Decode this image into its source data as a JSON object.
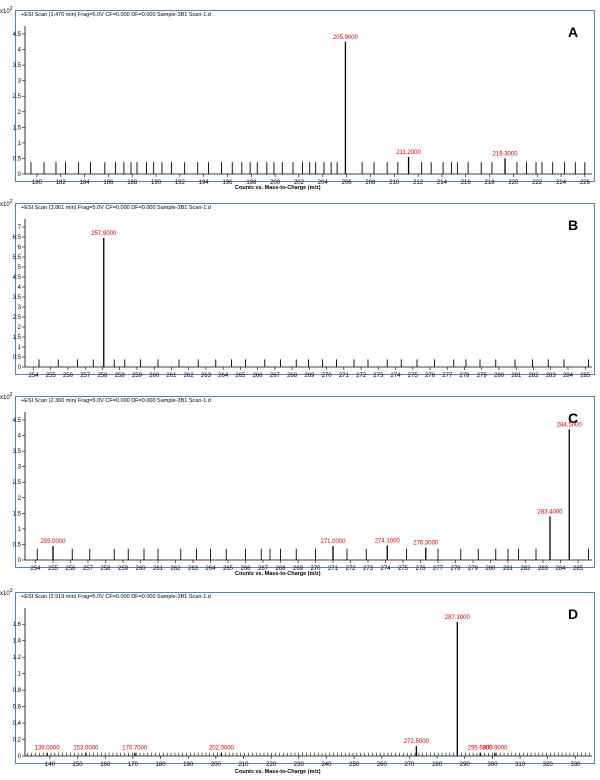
{
  "colors": {
    "frame": "#5a7fbf",
    "peak_label": "#cc0000",
    "bars": "#000000"
  },
  "chart_data": [
    {
      "type": "bar",
      "panel": "A",
      "scan_title": "+ESI Scan (1.470 min) Frag=5.0V CF=0.000 DF=0.000 Sample-3B1 Scan-1.d",
      "scale_label": "x10",
      "scale_exp": "2",
      "xlabel": "Counts vs. Mass-to-Charge (m/z)",
      "xlim": [
        179,
        226.6
      ],
      "ylim": [
        0,
        4.5
      ],
      "xticks": [
        "180",
        "182",
        "184",
        "186",
        "188",
        "190",
        "192",
        "194",
        "196",
        "198",
        "200",
        "202",
        "204",
        "206",
        "208",
        "210",
        "212",
        "214",
        "216",
        "218",
        "220",
        "222",
        "224",
        "226"
      ],
      "yticks": [
        "0",
        "0.5",
        "1",
        "1.5",
        "2",
        "2.5",
        "3",
        "3.5",
        "4",
        "4.5"
      ],
      "labeled_peaks": [
        {
          "x": 205.9,
          "y": 4.25,
          "label": "205.9000"
        },
        {
          "x": 211.2,
          "y": 0.55,
          "label": "211.2000"
        },
        {
          "x": 219.3,
          "y": 0.5,
          "label": "219.3000"
        }
      ],
      "noise_x": [
        179.5,
        180.6,
        181.6,
        182.4,
        183.5,
        184.5,
        185.7,
        186.6,
        187.3,
        187.9,
        188.4,
        189.2,
        189.8,
        190.5,
        191.3,
        192.4,
        193.5,
        194.4,
        195.5,
        196.4,
        197.2,
        197.9,
        198.5,
        199.3,
        199.9,
        200.6,
        201.5,
        202.3,
        202.9,
        203.4,
        204.1,
        204.7,
        205.2,
        207.3,
        208.3,
        209.4,
        210.3,
        212.3,
        213.1,
        214.1,
        214.8,
        215.3,
        216.2,
        217.3,
        218.2,
        220.3,
        221.1,
        221.9,
        222.4,
        223.3,
        224.3,
        225.2,
        226.0
      ],
      "noise_y": 0.38
    },
    {
      "type": "bar",
      "panel": "B",
      "scan_title": "+ESI Scan (3.861 min) Frag=5.0V CF=0.000 DF=0.000 Sample-3B1 Scan-1.d",
      "scale_label": "x10",
      "scale_exp": "2",
      "xlabel": "",
      "xlim": [
        253.4,
        285.8
      ],
      "ylim": [
        0,
        7
      ],
      "xticks": [
        "254",
        "255",
        "256",
        "257",
        "258",
        "258",
        "259",
        "260",
        "261",
        "262",
        "263",
        "264",
        "265",
        "266",
        "267",
        "268",
        "269",
        "270",
        "271",
        "272",
        "273",
        "274",
        "275",
        "276",
        "277",
        "278",
        "279",
        "280",
        "281",
        "282",
        "283",
        "284",
        "285"
      ],
      "yticks": [
        "0",
        "0.5",
        "1",
        "1.5",
        "2",
        "2.5",
        "3",
        "3.5",
        "4",
        "4.5",
        "5",
        "5.5",
        "6",
        "6.5",
        "7"
      ],
      "labeled_peaks": [
        {
          "x": 257.9,
          "y": 6.45,
          "label": "257.9000"
        }
      ],
      "noise_x": [
        254.2,
        255.3,
        256.4,
        257.3,
        258.5,
        259.1,
        260.0,
        261.0,
        262.2,
        263.3,
        264.3,
        265.2,
        266.0,
        267.1,
        268.0,
        268.9,
        269.6,
        270.4,
        271.2,
        272.2,
        273.0,
        274.1,
        274.9,
        275.8,
        276.8,
        277.9,
        278.6,
        279.4,
        280.3,
        281.4,
        282.4,
        283.3,
        284.2,
        285.6
      ],
      "noise_y": 0.38
    },
    {
      "type": "bar",
      "panel": "C",
      "scan_title": "+ESI Scan (2.360 min) Frag=5.0V CF=0.000 DF=0.000 Sample-3B1 Scan-1.d",
      "scale_label": "x10",
      "scale_exp": "2",
      "xlabel": "Counts vs. Mass-to-Charge (m/z)",
      "xlim": [
        253.4,
        285.8
      ],
      "ylim": [
        0,
        4.5
      ],
      "xticks": [
        "254",
        "255",
        "256",
        "257",
        "258",
        "259",
        "260",
        "261",
        "262",
        "263",
        "264",
        "265",
        "266",
        "267",
        "268",
        "269",
        "270",
        "271",
        "272",
        "273",
        "274",
        "275",
        "276",
        "277",
        "278",
        "279",
        "280",
        "281",
        "282",
        "283",
        "284",
        "285"
      ],
      "yticks": [
        "0",
        "0.5",
        "1",
        "1.5",
        "2",
        "2.5",
        "3",
        "3.5",
        "4",
        "4.5"
      ],
      "labeled_peaks": [
        {
          "x": 255.0,
          "y": 0.45,
          "label": "255.0000"
        },
        {
          "x": 271.0,
          "y": 0.45,
          "label": "271.0000"
        },
        {
          "x": 274.1,
          "y": 0.47,
          "label": "274.1000"
        },
        {
          "x": 276.3,
          "y": 0.4,
          "label": "276.3000"
        },
        {
          "x": 283.4,
          "y": 1.4,
          "label": "283.4000"
        },
        {
          "x": 284.5,
          "y": 4.2,
          "label": "284.5000"
        }
      ],
      "noise_x": [
        254.1,
        256.1,
        257.1,
        258.5,
        259.3,
        260.2,
        261.0,
        262.3,
        263.2,
        264.0,
        264.9,
        266.0,
        266.9,
        267.4,
        268.0,
        268.9,
        270.0,
        271.8,
        272.9,
        275.2,
        277.0,
        278.3,
        279.3,
        280.3,
        281.0,
        281.6,
        282.6,
        285.6
      ],
      "noise_y": 0.36
    },
    {
      "type": "bar",
      "panel": "D",
      "scan_title": "+ESI Scan (2.919 min) Frag=5.0V CF=0.000 DF=0.000 Sample-3B1 Scan-1.d",
      "scale_label": "x10",
      "scale_exp": "3",
      "xlabel": "Counts vs. Mass-to-Charge (m/z)",
      "xlim": [
        131,
        336
      ],
      "ylim": [
        0,
        1.7
      ],
      "xticks": [
        "140",
        "150",
        "160",
        "170",
        "180",
        "190",
        "200",
        "210",
        "220",
        "230",
        "240",
        "250",
        "260",
        "270",
        "280",
        "290",
        "300",
        "310",
        "320",
        "330"
      ],
      "yticks": [
        "0",
        "0.2",
        "0.4",
        "0.6",
        "0.8",
        "1",
        "1.2",
        "1.4",
        "1.6"
      ],
      "labeled_peaks": [
        {
          "x": 139.0,
          "y": 0.04,
          "label": "139.0000"
        },
        {
          "x": 153.0,
          "y": 0.04,
          "label": "153.0000"
        },
        {
          "x": 170.7,
          "y": 0.04,
          "label": "170.7000"
        },
        {
          "x": 202.0,
          "y": 0.04,
          "label": "202.0000"
        },
        {
          "x": 272.5,
          "y": 0.12,
          "label": "272.5000"
        },
        {
          "x": 287.3,
          "y": 1.63,
          "label": "287.3000"
        },
        {
          "x": 295.6,
          "y": 0.04,
          "label": "295.6000"
        },
        {
          "x": 300.9,
          "y": 0.04,
          "label": "300.9000"
        }
      ],
      "noise_x": [],
      "noise_y": 0.04,
      "dense_noise": {
        "start": 132,
        "end": 335,
        "step": 1.4
      }
    }
  ]
}
